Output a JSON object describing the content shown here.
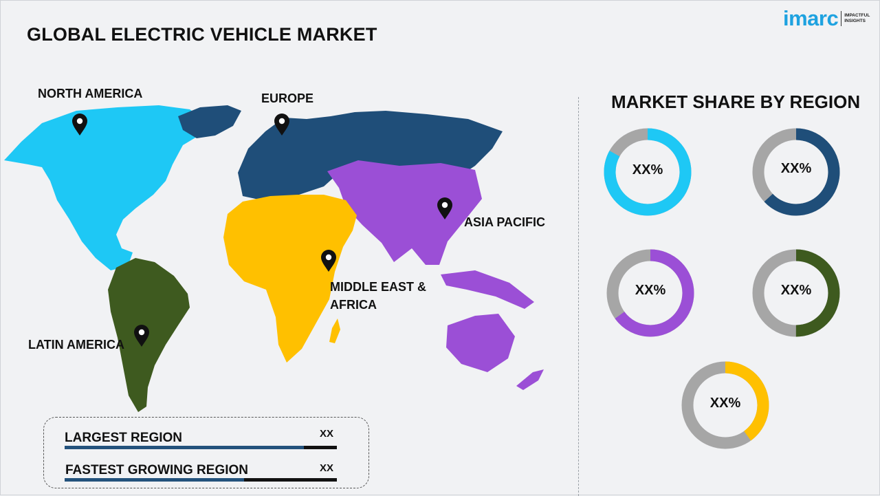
{
  "title": "GLOBAL ELECTRIC VEHICLE MARKET",
  "logo": {
    "word": "imarc",
    "tag_line1": "IMPACTFUL",
    "tag_line2": "INSIGHTS"
  },
  "regions": [
    {
      "label": "NORTH AMERICA",
      "color": "#1ec8f5"
    },
    {
      "label": "EUROPE",
      "color": "#1f4e79"
    },
    {
      "label": "ASIA PACIFIC",
      "color": "#9b4fd6"
    },
    {
      "label_line1": "MIDDLE EAST &",
      "label_line2": "AFRICA",
      "color": "#ffc000"
    },
    {
      "label": "LATIN AMERICA",
      "color": "#3e5a1f"
    }
  ],
  "share_title": "MARKET SHARE BY REGION",
  "donuts": [
    {
      "region": "North America",
      "value": "XX%",
      "color": "#1ec8f5",
      "share": 0.83
    },
    {
      "region": "Europe",
      "value": "XX%",
      "color": "#1f4e79",
      "share": 0.63
    },
    {
      "region": "Asia Pacific",
      "value": "XX%",
      "color": "#9b4fd6",
      "share": 0.65
    },
    {
      "region": "Latin America",
      "value": "XX%",
      "color": "#3e5a1f",
      "share": 0.5
    },
    {
      "region": "Middle East & Africa",
      "value": "XX%",
      "color": "#ffc000",
      "share": 0.4
    }
  ],
  "track_color": "#a6a6a6",
  "info": {
    "largest_label": "LARGEST REGION",
    "largest_value": "XX",
    "largest_fill": 0.88,
    "fastest_label": "FASTEST GROWING REGION",
    "fastest_value": "XX",
    "fastest_fill": 0.66
  }
}
